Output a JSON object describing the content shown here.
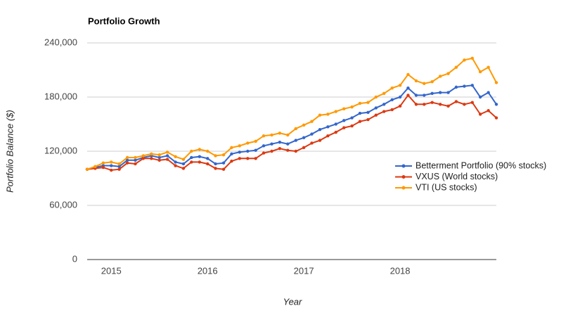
{
  "chart_data": {
    "type": "line",
    "title": "Portfolio Growth",
    "x_label": "Year",
    "y_label": "Portfolio Balance ($)",
    "x": [
      2014.75,
      2014.833,
      2014.917,
      2015,
      2015.083,
      2015.167,
      2015.25,
      2015.333,
      2015.417,
      2015.5,
      2015.583,
      2015.667,
      2015.75,
      2015.833,
      2015.917,
      2016,
      2016.083,
      2016.167,
      2016.25,
      2016.333,
      2016.417,
      2016.5,
      2016.583,
      2016.667,
      2016.75,
      2016.833,
      2016.917,
      2017,
      2017.083,
      2017.167,
      2017.25,
      2017.333,
      2017.417,
      2017.5,
      2017.583,
      2017.667,
      2017.75,
      2017.833,
      2017.917,
      2018,
      2018.083,
      2018.167,
      2018.25,
      2018.333,
      2018.417,
      2018.5,
      2018.583,
      2018.667,
      2018.75,
      2018.833,
      2018.917,
      2019
    ],
    "series": [
      {
        "name": "Betterment Portfolio (90% stocks)",
        "color": "#3366cc",
        "values": [
          100000,
          102000,
          104000,
          104000,
          103000,
          110000,
          110000,
          113000,
          115000,
          113000,
          115000,
          108000,
          106000,
          113000,
          114000,
          112000,
          106000,
          107000,
          117000,
          119000,
          120000,
          121000,
          126000,
          128000,
          130000,
          128000,
          132000,
          135000,
          139000,
          144000,
          147000,
          150000,
          154000,
          157000,
          162000,
          163000,
          168000,
          172000,
          177000,
          180000,
          190000,
          182000,
          182000,
          184000,
          185000,
          185000,
          191000,
          192000,
          193000,
          180000,
          185000,
          172000
        ]
      },
      {
        "name": "VXUS (World stocks)",
        "color": "#dc3912",
        "values": [
          100000,
          101000,
          102000,
          99000,
          100000,
          107000,
          106000,
          112000,
          112000,
          110000,
          111000,
          104000,
          101000,
          108000,
          108000,
          106000,
          101000,
          100000,
          109000,
          112000,
          112000,
          112000,
          118000,
          120000,
          123000,
          121000,
          120000,
          124000,
          129000,
          132000,
          137000,
          141000,
          146000,
          148000,
          153000,
          155000,
          160000,
          164000,
          166000,
          170000,
          182000,
          172000,
          172000,
          174000,
          172000,
          170000,
          175000,
          172000,
          174000,
          161000,
          165000,
          157000
        ]
      },
      {
        "name": "VTI (US stocks)",
        "color": "#ff9900",
        "values": [
          100000,
          103000,
          107000,
          108000,
          106000,
          113000,
          113000,
          115000,
          117000,
          116000,
          119000,
          114000,
          111000,
          120000,
          122000,
          120000,
          115000,
          116000,
          124000,
          126000,
          129000,
          131000,
          137000,
          138000,
          140000,
          138000,
          145000,
          149000,
          153000,
          160000,
          161000,
          164000,
          167000,
          169000,
          173000,
          174000,
          180000,
          184000,
          190000,
          193000,
          205000,
          198000,
          195000,
          197000,
          203000,
          206000,
          213000,
          221000,
          223000,
          208000,
          213000,
          196000
        ]
      }
    ],
    "xlim": [
      2014.75,
      2019
    ],
    "xticks": [
      2015,
      2016,
      2017,
      2018
    ],
    "ylim": [
      0,
      240000
    ],
    "yticks": [
      0,
      {
        "value": 60000,
        "label": "60,000"
      },
      {
        "value": 120000,
        "label": "120,000"
      },
      {
        "value": 180000,
        "label": "180,000"
      },
      {
        "value": 240000,
        "label": "240,000"
      }
    ],
    "grid": true,
    "legend": "right"
  }
}
